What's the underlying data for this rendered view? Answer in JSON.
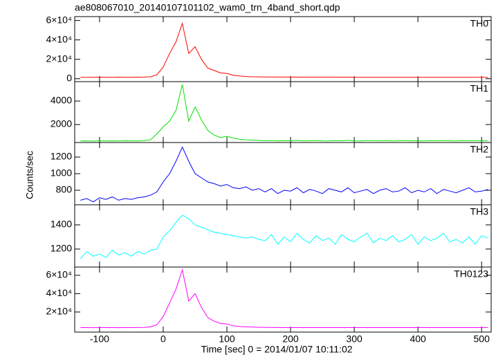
{
  "chart_data": [
    {
      "type": "line",
      "title": "ae808067010_20140107101102_wam0_trn_4band_short.qdp",
      "x": [
        -130,
        -120,
        -110,
        -100,
        -90,
        -80,
        -70,
        -60,
        -50,
        -40,
        -30,
        -20,
        -10,
        0,
        10,
        20,
        30,
        40,
        50,
        60,
        70,
        80,
        90,
        100,
        110,
        120,
        130,
        140,
        150,
        160,
        170,
        180,
        190,
        200,
        210,
        220,
        230,
        240,
        250,
        260,
        270,
        280,
        290,
        300,
        310,
        320,
        330,
        340,
        350,
        360,
        370,
        380,
        390,
        400,
        410,
        420,
        430,
        440,
        450,
        460,
        470,
        480,
        490,
        500,
        510
      ],
      "series": [
        {
          "name": "TH0",
          "color": "#ff0000",
          "values": [
            1500,
            1500,
            1500,
            1600,
            1500,
            1500,
            1600,
            1500,
            1500,
            1600,
            1700,
            2000,
            4000,
            12000,
            26000,
            38000,
            57000,
            26000,
            33000,
            20000,
            11000,
            8500,
            6000,
            5500,
            3500,
            2800,
            2300,
            2000,
            1900,
            1800,
            1800,
            1700,
            1700,
            1700,
            1600,
            1600,
            1600,
            1600,
            1600,
            1600,
            1600,
            1600,
            1600,
            1500,
            1500,
            1500,
            1500,
            1500,
            1500,
            1500,
            1500,
            1500,
            1500,
            1500,
            1500,
            1500,
            1500,
            1500,
            1500,
            1500,
            1500,
            1500,
            1500,
            1500,
            1500
          ]
        }
      ],
      "xlim": [
        -139,
        515
      ],
      "ylim": [
        -3000,
        64000
      ],
      "yticks": [
        0,
        {
          "value": 20000,
          "label": "2×10⁴"
        },
        {
          "value": 40000,
          "label": "4×10⁴"
        },
        {
          "value": 60000,
          "label": "6×10⁴"
        }
      ]
    },
    {
      "type": "line",
      "x": [
        -130,
        -120,
        -110,
        -100,
        -90,
        -80,
        -70,
        -60,
        -50,
        -40,
        -30,
        -20,
        -10,
        0,
        10,
        20,
        30,
        40,
        50,
        60,
        70,
        80,
        90,
        100,
        110,
        120,
        130,
        140,
        150,
        160,
        170,
        180,
        190,
        200,
        210,
        220,
        230,
        240,
        250,
        260,
        270,
        280,
        290,
        300,
        310,
        320,
        330,
        340,
        350,
        360,
        370,
        380,
        390,
        400,
        410,
        420,
        430,
        440,
        450,
        460,
        470,
        480,
        490,
        500,
        510
      ],
      "series": [
        {
          "name": "TH1",
          "color": "#00e000",
          "values": [
            600,
            610,
            590,
            620,
            600,
            610,
            600,
            620,
            610,
            600,
            640,
            700,
            1200,
            1800,
            2300,
            3200,
            5400,
            2300,
            3500,
            2400,
            1500,
            1100,
            900,
            1000,
            850,
            750,
            700,
            680,
            650,
            620,
            640,
            600,
            630,
            610,
            650,
            600,
            620,
            640,
            610,
            600,
            630,
            620,
            650,
            610,
            600,
            640,
            620,
            610,
            630,
            600,
            620,
            640,
            610,
            620,
            600,
            630,
            610,
            640,
            620,
            600,
            630,
            610,
            620,
            640,
            610
          ]
        }
      ],
      "xlim": [
        -139,
        515
      ],
      "ylim": [
        470,
        5650
      ],
      "yticks": [
        2000,
        4000
      ]
    },
    {
      "type": "line",
      "ylabel": "Counts/sec",
      "x": [
        -130,
        -120,
        -110,
        -100,
        -90,
        -80,
        -70,
        -60,
        -50,
        -40,
        -30,
        -20,
        -10,
        0,
        10,
        20,
        30,
        40,
        50,
        60,
        70,
        80,
        90,
        100,
        110,
        120,
        130,
        140,
        150,
        160,
        170,
        180,
        190,
        200,
        210,
        220,
        230,
        240,
        250,
        260,
        270,
        280,
        290,
        300,
        310,
        320,
        330,
        340,
        350,
        360,
        370,
        380,
        390,
        400,
        410,
        420,
        430,
        440,
        450,
        460,
        470,
        480,
        490,
        500,
        510
      ],
      "series": [
        {
          "name": "TH2",
          "color": "#0000ff",
          "values": [
            680,
            700,
            660,
            710,
            690,
            720,
            680,
            700,
            690,
            710,
            720,
            740,
            780,
            900,
            1000,
            1150,
            1320,
            1150,
            1000,
            950,
            900,
            880,
            850,
            870,
            830,
            820,
            840,
            800,
            820,
            780,
            820,
            760,
            800,
            790,
            830,
            770,
            810,
            790,
            760,
            820,
            800,
            780,
            830,
            770,
            790,
            810,
            760,
            800,
            820,
            780,
            790,
            830,
            770,
            800,
            780,
            820,
            760,
            810,
            790,
            770,
            800,
            830,
            780,
            790,
            810
          ]
        }
      ],
      "xlim": [
        -139,
        515
      ],
      "ylim": [
        625,
        1375
      ],
      "yticks": [
        800,
        1000,
        1200
      ]
    },
    {
      "type": "line",
      "x": [
        -130,
        -120,
        -110,
        -100,
        -90,
        -80,
        -70,
        -60,
        -50,
        -40,
        -30,
        -20,
        -10,
        0,
        10,
        20,
        30,
        40,
        50,
        60,
        70,
        80,
        90,
        100,
        110,
        120,
        130,
        140,
        150,
        160,
        170,
        180,
        190,
        200,
        210,
        220,
        230,
        240,
        250,
        260,
        270,
        280,
        290,
        300,
        310,
        320,
        330,
        340,
        350,
        360,
        370,
        380,
        390,
        400,
        410,
        420,
        430,
        440,
        450,
        460,
        470,
        480,
        490,
        500,
        510
      ],
      "series": [
        {
          "name": "TH3",
          "color": "#00ffff",
          "values": [
            1120,
            1180,
            1140,
            1160,
            1130,
            1190,
            1150,
            1170,
            1140,
            1180,
            1160,
            1190,
            1200,
            1300,
            1350,
            1420,
            1480,
            1450,
            1400,
            1380,
            1360,
            1340,
            1330,
            1320,
            1310,
            1300,
            1290,
            1300,
            1280,
            1270,
            1320,
            1240,
            1300,
            1260,
            1330,
            1280,
            1250,
            1310,
            1270,
            1290,
            1240,
            1320,
            1280,
            1260,
            1300,
            1330,
            1250,
            1290,
            1270,
            1310,
            1260,
            1280,
            1320,
            1240,
            1300,
            1270,
            1290,
            1330,
            1260,
            1280,
            1250,
            1300,
            1240,
            1310,
            1290
          ]
        }
      ],
      "xlim": [
        -139,
        515
      ],
      "ylim": [
        1051,
        1566
      ],
      "yticks": [
        1200,
        1400
      ]
    },
    {
      "type": "line",
      "xlabel": "Time [sec] 0 = 2014/01/07 10:11:02",
      "x": [
        -130,
        -120,
        -110,
        -100,
        -90,
        -80,
        -70,
        -60,
        -50,
        -40,
        -30,
        -20,
        -10,
        0,
        10,
        20,
        30,
        40,
        50,
        60,
        70,
        80,
        90,
        100,
        110,
        120,
        130,
        140,
        150,
        160,
        170,
        180,
        190,
        200,
        210,
        220,
        230,
        240,
        250,
        260,
        270,
        280,
        290,
        300,
        310,
        320,
        330,
        340,
        350,
        360,
        370,
        380,
        390,
        400,
        410,
        420,
        430,
        440,
        450,
        460,
        470,
        480,
        490,
        500,
        510
      ],
      "series": [
        {
          "name": "TH0123",
          "color": "#ff00ff",
          "values": [
            3000,
            3000,
            2900,
            3000,
            3000,
            3000,
            2900,
            3000,
            3000,
            3100,
            3200,
            3800,
            6000,
            15000,
            30000,
            45000,
            66000,
            32000,
            40000,
            25000,
            14000,
            10000,
            7500,
            7000,
            5000,
            4200,
            3800,
            3500,
            3300,
            3200,
            3100,
            3100,
            3000,
            3000,
            3000,
            3000,
            3000,
            3000,
            3000,
            3000,
            3000,
            3000,
            3000,
            3000,
            3000,
            3000,
            3000,
            3000,
            3000,
            3000,
            3000,
            3000,
            3000,
            3000,
            3000,
            3000,
            3000,
            3000,
            3000,
            3000,
            3000,
            3000,
            3000,
            3000,
            3000
          ]
        }
      ],
      "xlim": [
        -139,
        515
      ],
      "ylim": [
        -1900,
        69000
      ],
      "yticks": [
        {
          "value": 20000,
          "label": "2×10⁴"
        },
        {
          "value": 40000,
          "label": "4×10⁴"
        },
        {
          "value": 60000,
          "label": "6×10⁴"
        }
      ],
      "xticks": [
        -100,
        0,
        100,
        200,
        300,
        400,
        500
      ]
    }
  ]
}
